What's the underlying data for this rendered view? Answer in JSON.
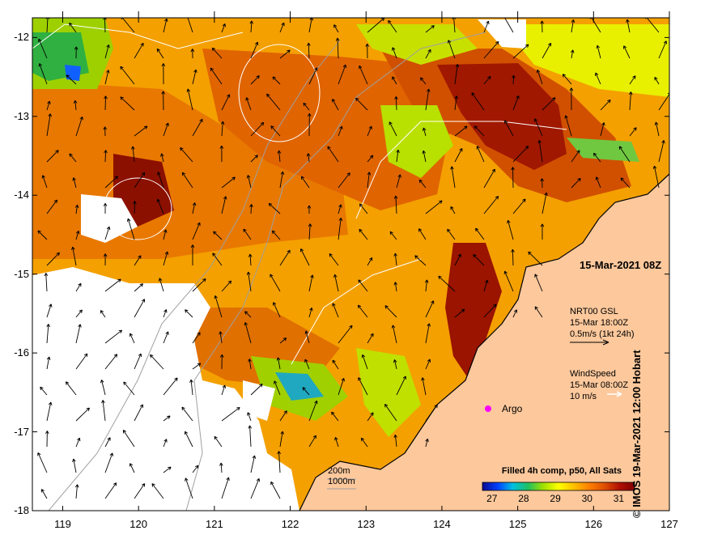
{
  "map": {
    "date_label": "15-Mar-2021 08Z",
    "credit": "© IMOS 19-Mar-2021 12:00 Hobart",
    "y_ticks": [
      "-12",
      "-13",
      "-14",
      "-15",
      "-16",
      "-17",
      "-18"
    ],
    "x_ticks": [
      "119",
      "120",
      "121",
      "122",
      "123",
      "124",
      "125",
      "126",
      "127"
    ],
    "lon_range": [
      118.6,
      127
    ],
    "lat_range": [
      -18,
      -11.75
    ]
  },
  "currents_legend": {
    "line1": "NRT00 GSL",
    "line2": "15-Mar 18:00Z",
    "line3": "0.5m/s (1kt 24h)"
  },
  "wind_legend": {
    "line1": "WindSpeed",
    "line2": "15-Mar 08:00Z",
    "line3": "10 m/s"
  },
  "argo": {
    "label": "Argo",
    "color": "#ff00ff"
  },
  "isobaths": {
    "label1": "200m",
    "label2": "1000m"
  },
  "colorbar": {
    "title": "Filled 4h comp, p50, All Sats",
    "ticks": [
      "27",
      "28",
      "29",
      "30",
      "31"
    ],
    "range": [
      26.7,
      31.5
    ],
    "colors": [
      "#0a0a90",
      "#0040ff",
      "#00c0e0",
      "#20c060",
      "#a0e000",
      "#ffff00",
      "#ffc000",
      "#ff8000",
      "#e05000",
      "#b01000",
      "#800000"
    ]
  },
  "colors": {
    "land": "#fcc89c",
    "cloud": "#ffffff",
    "sea_base": "#f4a000",
    "isobath": "#a0a0a0",
    "coast": "#000000"
  }
}
